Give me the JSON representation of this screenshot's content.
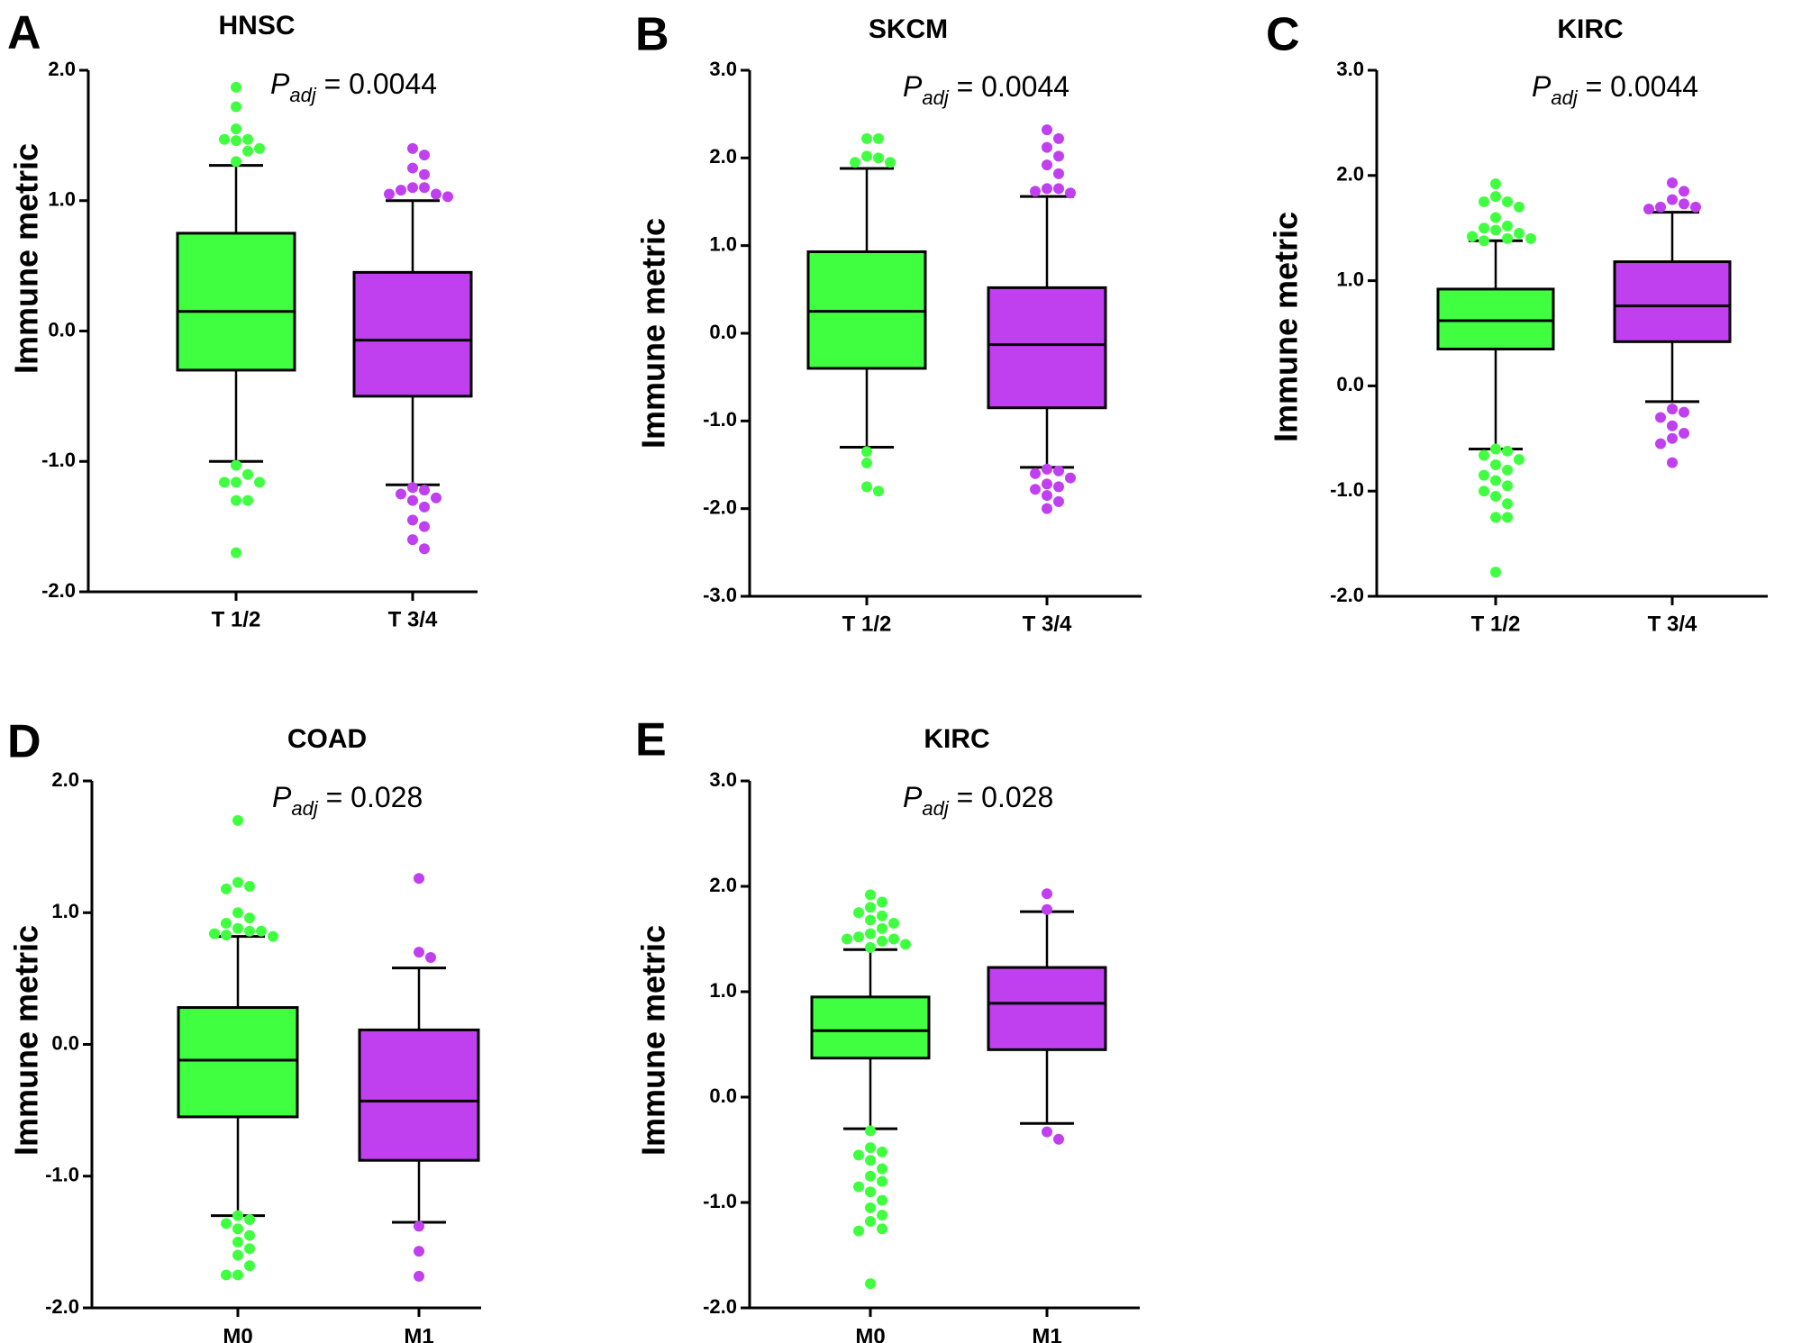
{
  "colors": {
    "green": "#40ff40",
    "purple": "#c040f0",
    "axis": "#000000"
  },
  "chart_data": [
    {
      "type": "box",
      "panel": "A",
      "title": "HNSC",
      "ylabel": "Immune metric",
      "annotation": {
        "p": "P",
        "sub": "adj",
        "text": " = 0.0044"
      },
      "ylim": [
        -2.0,
        2.0
      ],
      "yticks": [
        2.0,
        1.0,
        0.0,
        -1.0,
        -2.0
      ],
      "ytick_labels": [
        "2.0",
        "1.0",
        "0.0",
        "-1.0",
        "-2.0"
      ],
      "categories": [
        "T 1/2",
        "T 3/4"
      ],
      "boxes": [
        {
          "category": "T 1/2",
          "color": "green",
          "q1": -0.3,
          "median": 0.15,
          "q3": 0.75,
          "whisker_low": -1.0,
          "whisker_high": 1.27,
          "outliers": [
            1.87,
            1.72,
            1.55,
            1.47,
            1.47,
            1.46,
            1.4,
            1.38,
            1.3,
            -1.03,
            -1.1,
            -1.16,
            -1.16,
            -1.16,
            -1.3,
            -1.3,
            -1.7
          ]
        },
        {
          "category": "T 3/4",
          "color": "purple",
          "q1": -0.5,
          "median": -0.07,
          "q3": 0.45,
          "whisker_low": -1.18,
          "whisker_high": 1.0,
          "outliers": [
            1.4,
            1.35,
            1.25,
            1.2,
            1.1,
            1.1,
            1.08,
            1.05,
            1.05,
            1.03,
            -1.2,
            -1.22,
            -1.25,
            -1.28,
            -1.3,
            -1.35,
            -1.45,
            -1.5,
            -1.6,
            -1.67
          ]
        }
      ]
    },
    {
      "type": "box",
      "panel": "B",
      "title": "SKCM",
      "ylabel": "Immune metric",
      "annotation": {
        "p": "P",
        "sub": "adj",
        "text": " = 0.0044"
      },
      "ylim": [
        -3.0,
        3.0
      ],
      "yticks": [
        3.0,
        2.0,
        1.0,
        0.0,
        -1.0,
        -2.0,
        -3.0
      ],
      "ytick_labels": [
        "3.0",
        "2.0",
        "1.0",
        "0.0",
        "-1.0",
        "-2.0",
        "-3.0"
      ],
      "categories": [
        "T 1/2",
        "T 3/4"
      ],
      "boxes": [
        {
          "category": "T 1/2",
          "color": "green",
          "q1": -0.4,
          "median": 0.25,
          "q3": 0.93,
          "whisker_low": -1.3,
          "whisker_high": 1.88,
          "outliers": [
            2.22,
            2.22,
            2.02,
            2.0,
            1.95,
            1.95,
            -1.35,
            -1.48,
            -1.75,
            -1.8
          ]
        },
        {
          "category": "T 3/4",
          "color": "purple",
          "q1": -0.85,
          "median": -0.13,
          "q3": 0.52,
          "whisker_low": -1.53,
          "whisker_high": 1.56,
          "outliers": [
            2.32,
            2.22,
            2.12,
            2.02,
            1.92,
            1.82,
            1.65,
            1.65,
            1.62,
            1.6,
            -1.55,
            -1.57,
            -1.6,
            -1.65,
            -1.72,
            -1.75,
            -1.78,
            -1.85,
            -1.92,
            -2.0
          ]
        }
      ]
    },
    {
      "type": "box",
      "panel": "C",
      "title": "KIRC",
      "ylabel": "Immune metric",
      "annotation": {
        "p": "P",
        "sub": "adj",
        "text": " = 0.0044"
      },
      "ylim": [
        -2.0,
        3.0
      ],
      "yticks": [
        3.0,
        2.0,
        1.0,
        0.0,
        -1.0,
        -2.0
      ],
      "ytick_labels": [
        "3.0",
        "2.0",
        "1.0",
        "0.0",
        "-1.0",
        "-2.0"
      ],
      "categories": [
        "T 1/2",
        "T 3/4"
      ],
      "boxes": [
        {
          "category": "T 1/2",
          "color": "green",
          "q1": 0.35,
          "median": 0.62,
          "q3": 0.92,
          "whisker_low": -0.6,
          "whisker_high": 1.38,
          "outliers": [
            1.92,
            1.8,
            1.75,
            1.75,
            1.7,
            1.6,
            1.52,
            1.5,
            1.48,
            1.45,
            1.42,
            1.4,
            1.4,
            1.38,
            -0.6,
            -0.62,
            -0.66,
            -0.7,
            -0.75,
            -0.8,
            -0.85,
            -0.9,
            -0.95,
            -1.0,
            -1.05,
            -1.12,
            -1.25,
            -1.25,
            -1.77
          ]
        },
        {
          "category": "T 3/4",
          "color": "purple",
          "q1": 0.42,
          "median": 0.76,
          "q3": 1.18,
          "whisker_low": -0.15,
          "whisker_high": 1.65,
          "outliers": [
            1.93,
            1.85,
            1.77,
            1.73,
            1.7,
            1.7,
            1.68,
            -0.22,
            -0.25,
            -0.3,
            -0.38,
            -0.45,
            -0.5,
            -0.55,
            -0.73
          ]
        }
      ]
    },
    {
      "type": "box",
      "panel": "D",
      "title": "COAD",
      "ylabel": "Immune metric",
      "annotation": {
        "p": "P",
        "sub": "adj",
        "text": " = 0.028"
      },
      "ylim": [
        -2.0,
        2.0
      ],
      "yticks": [
        2.0,
        1.0,
        0.0,
        -1.0,
        -2.0
      ],
      "ytick_labels": [
        "2.0",
        "1.0",
        "0.0",
        "-1.0",
        "-2.0"
      ],
      "categories": [
        "M0",
        "M1"
      ],
      "boxes": [
        {
          "category": "M0",
          "color": "green",
          "q1": -0.55,
          "median": -0.12,
          "q3": 0.28,
          "whisker_low": -1.3,
          "whisker_high": 0.82,
          "outliers": [
            1.7,
            1.23,
            1.2,
            1.18,
            1.0,
            0.96,
            0.92,
            0.88,
            0.86,
            0.86,
            0.84,
            0.83,
            0.82,
            -1.3,
            -1.33,
            -1.36,
            -1.4,
            -1.45,
            -1.5,
            -1.55,
            -1.6,
            -1.68,
            -1.75,
            -1.75
          ]
        },
        {
          "category": "M1",
          "color": "purple",
          "q1": -0.88,
          "median": -0.43,
          "q3": 0.11,
          "whisker_low": -1.35,
          "whisker_high": 0.58,
          "outliers": [
            1.26,
            0.7,
            0.66,
            -1.38,
            -1.57,
            -1.76
          ]
        }
      ]
    },
    {
      "type": "box",
      "panel": "E",
      "title": "KIRC",
      "ylabel": "Immune metric",
      "annotation": {
        "p": "P",
        "sub": "adj",
        "text": " = 0.028"
      },
      "ylim": [
        -2.0,
        3.0
      ],
      "yticks": [
        3.0,
        2.0,
        1.0,
        0.0,
        -1.0,
        -2.0
      ],
      "ytick_labels": [
        "3.0",
        "2.0",
        "1.0",
        "0.0",
        "-1.0",
        "-2.0"
      ],
      "categories": [
        "M0",
        "M1"
      ],
      "boxes": [
        {
          "category": "M0",
          "color": "green",
          "q1": 0.37,
          "median": 0.63,
          "q3": 0.95,
          "whisker_low": -0.3,
          "whisker_high": 1.4,
          "outliers": [
            1.92,
            1.85,
            1.8,
            1.75,
            1.72,
            1.68,
            1.65,
            1.6,
            1.55,
            1.52,
            1.5,
            1.5,
            1.48,
            1.45,
            1.42,
            -0.32,
            -0.48,
            -0.52,
            -0.55,
            -0.6,
            -0.68,
            -0.75,
            -0.8,
            -0.85,
            -0.9,
            -0.98,
            -1.05,
            -1.12,
            -1.18,
            -1.25,
            -1.27,
            -1.77
          ]
        },
        {
          "category": "M1",
          "color": "purple",
          "q1": 0.45,
          "median": 0.89,
          "q3": 1.23,
          "whisker_low": -0.25,
          "whisker_high": 1.76,
          "outliers": [
            1.93,
            1.78,
            -0.33,
            -0.4
          ]
        }
      ]
    }
  ]
}
